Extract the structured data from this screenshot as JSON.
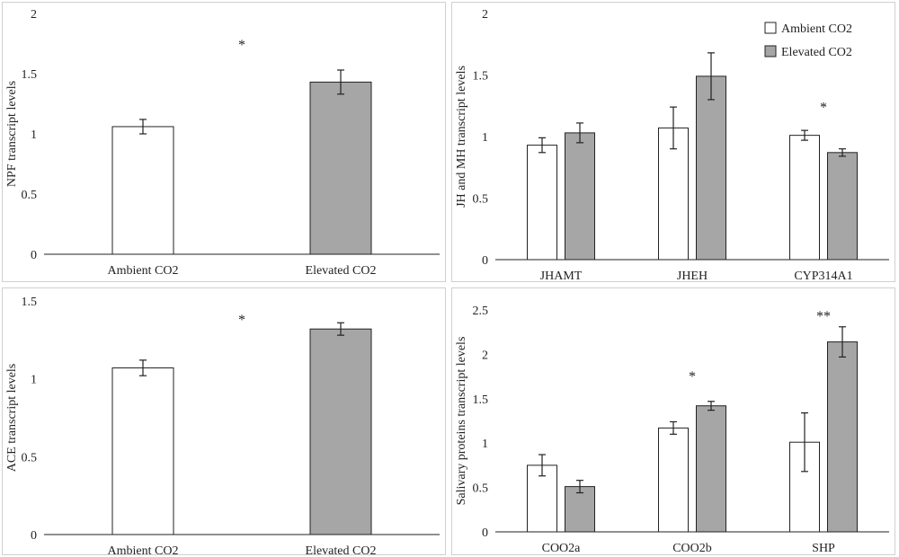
{
  "chart_data": [
    {
      "type": "bar",
      "ylabel": "NPF transcript levels",
      "ylim": [
        0,
        2
      ],
      "yticks": [
        "0",
        "0.5",
        "1",
        "1.5",
        "2"
      ],
      "ytick_values": [
        0,
        0.5,
        1,
        1.5,
        2
      ],
      "categories": [
        "Ambient CO2",
        "Elevated CO2"
      ],
      "series": [
        {
          "name": "Ambient CO2",
          "values": [
            1.06,
            null
          ],
          "errors": [
            0.06,
            null
          ],
          "color": "#ffffff"
        },
        {
          "name": "Elevated CO2",
          "values": [
            null,
            1.43
          ],
          "errors": [
            null,
            0.1
          ],
          "color": "#a6a6a6"
        }
      ],
      "annotations": [
        {
          "text": "*",
          "category_index": 0.5,
          "y": 1.7
        }
      ]
    },
    {
      "type": "bar",
      "ylabel": "JH and MH transcript levels",
      "ylim": [
        0,
        2
      ],
      "yticks": [
        "0",
        "0.5",
        "1",
        "1.5",
        "2"
      ],
      "ytick_values": [
        0,
        0.5,
        1,
        1.5,
        2
      ],
      "categories": [
        "JHAMT",
        "JHEH",
        "CYP314A1"
      ],
      "legend": {
        "position": "top-right",
        "entries": [
          "Ambient CO2",
          "Elevated CO2"
        ]
      },
      "series": [
        {
          "name": "Ambient CO2",
          "values": [
            0.93,
            1.07,
            1.01
          ],
          "errors": [
            0.06,
            0.17,
            0.04
          ],
          "color": "#ffffff"
        },
        {
          "name": "Elevated CO2",
          "values": [
            1.03,
            1.49,
            0.87
          ],
          "errors": [
            0.08,
            0.19,
            0.03
          ],
          "color": "#a6a6a6"
        }
      ],
      "annotations": [
        {
          "text": "*",
          "category_index": 2,
          "y": 1.2
        }
      ]
    },
    {
      "type": "bar",
      "ylabel": "ACE transcript levels",
      "ylim": [
        0,
        1.5
      ],
      "yticks": [
        "0",
        "0.5",
        "1",
        "1.5"
      ],
      "ytick_values": [
        0,
        0.5,
        1,
        1.5
      ],
      "categories": [
        "Ambient CO2",
        "Elevated CO2"
      ],
      "series": [
        {
          "name": "Ambient CO2",
          "values": [
            1.07,
            null
          ],
          "errors": [
            0.05,
            null
          ],
          "color": "#ffffff"
        },
        {
          "name": "Elevated CO2",
          "values": [
            null,
            1.32
          ],
          "errors": [
            null,
            0.04
          ],
          "color": "#a6a6a6"
        }
      ],
      "annotations": [
        {
          "text": "*",
          "category_index": 0.5,
          "y": 1.35
        }
      ]
    },
    {
      "type": "bar",
      "ylabel": "Salivary proteins transcript levels",
      "ylim": [
        0,
        2.5
      ],
      "yticks": [
        "0",
        "0.5",
        "1",
        "1.5",
        "2",
        "2.5"
      ],
      "ytick_values": [
        0,
        0.5,
        1,
        1.5,
        2,
        2.5
      ],
      "categories": [
        "COO2a",
        "COO2b",
        "SHP"
      ],
      "series": [
        {
          "name": "Ambient CO2",
          "values": [
            0.75,
            1.17,
            1.01
          ],
          "errors": [
            0.12,
            0.07,
            0.33
          ],
          "color": "#ffffff"
        },
        {
          "name": "Elevated CO2",
          "values": [
            0.51,
            1.42,
            2.14
          ],
          "errors": [
            0.07,
            0.05,
            0.17
          ],
          "color": "#a6a6a6"
        }
      ],
      "annotations": [
        {
          "text": "*",
          "category_index": 1,
          "y": 1.7
        },
        {
          "text": "**",
          "category_index": 2,
          "y": 2.38
        }
      ]
    }
  ]
}
